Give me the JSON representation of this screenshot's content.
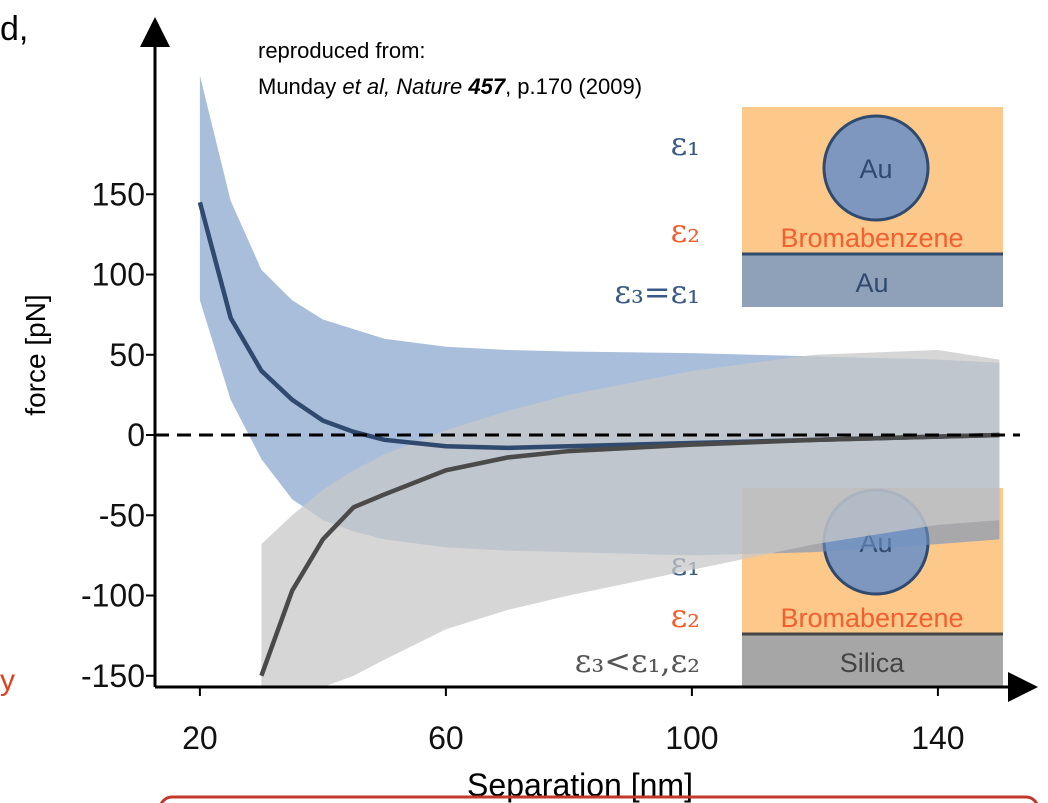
{
  "chart_data": {
    "type": "band-line",
    "fragments": {
      "top_left": "d,",
      "left": "y"
    },
    "reference": {
      "line1": "reproduced from:",
      "line2": [
        "Munday ",
        "et al, Nature ",
        "457",
        ", p.170 (2009)"
      ]
    },
    "x_label": "Separation [nm]",
    "y_label": "force [pN]",
    "xlim": [
      12.7,
      156.6
    ],
    "xticks": [
      20,
      60,
      100,
      140
    ],
    "ylim": [
      -157,
      261.7
    ],
    "yticks": [
      150,
      100,
      50,
      0,
      -50,
      -100,
      -150
    ],
    "hline": 0,
    "series": [
      {
        "color": "#2f4a6e",
        "band_color": "#6f92c2",
        "x": [
          20,
          25,
          30,
          35,
          40,
          45,
          50,
          60,
          70,
          80,
          100,
          120,
          140,
          150
        ],
        "values": [
          145,
          73,
          40,
          22,
          9,
          2,
          -3,
          -7,
          -8,
          -7,
          -5,
          -3,
          -1,
          0
        ],
        "band_upper": [
          224,
          146,
          103,
          84,
          72,
          66,
          60,
          55,
          53,
          52,
          51,
          49,
          47,
          45
        ],
        "band_lower": [
          84,
          22,
          -15,
          -40,
          -53,
          -60,
          -65,
          -70,
          -72,
          -73,
          -75,
          -73,
          -68,
          -65
        ],
        "labels": [
          "ε₁",
          "ε₂",
          "ε₃=ε₁"
        ],
        "inset": [
          "Au",
          "Bromabenzene",
          "Au"
        ]
      },
      {
        "color": "#4a4a4a",
        "band_color": "#c8c8c8",
        "x": [
          30,
          35,
          40,
          45,
          50,
          60,
          70,
          80,
          100,
          120,
          140,
          150
        ],
        "values": [
          -150,
          -97,
          -65,
          -45,
          -37,
          -22,
          -14,
          -10,
          -6,
          -3,
          -1,
          0
        ],
        "band_upper": [
          -68,
          -50,
          -34,
          -22,
          -12,
          3,
          15,
          25,
          40,
          50,
          53,
          47
        ],
        "band_lower": [
          -157,
          -157,
          -157,
          -150,
          -140,
          -121,
          -109,
          -100,
          -84,
          -68,
          -56,
          -53
        ],
        "labels": [
          "ε₁",
          "ε₂",
          "ε₃<ε₁,ε₂"
        ],
        "inset": [
          "Au",
          "Bromabenzene",
          "Silica"
        ]
      }
    ]
  }
}
